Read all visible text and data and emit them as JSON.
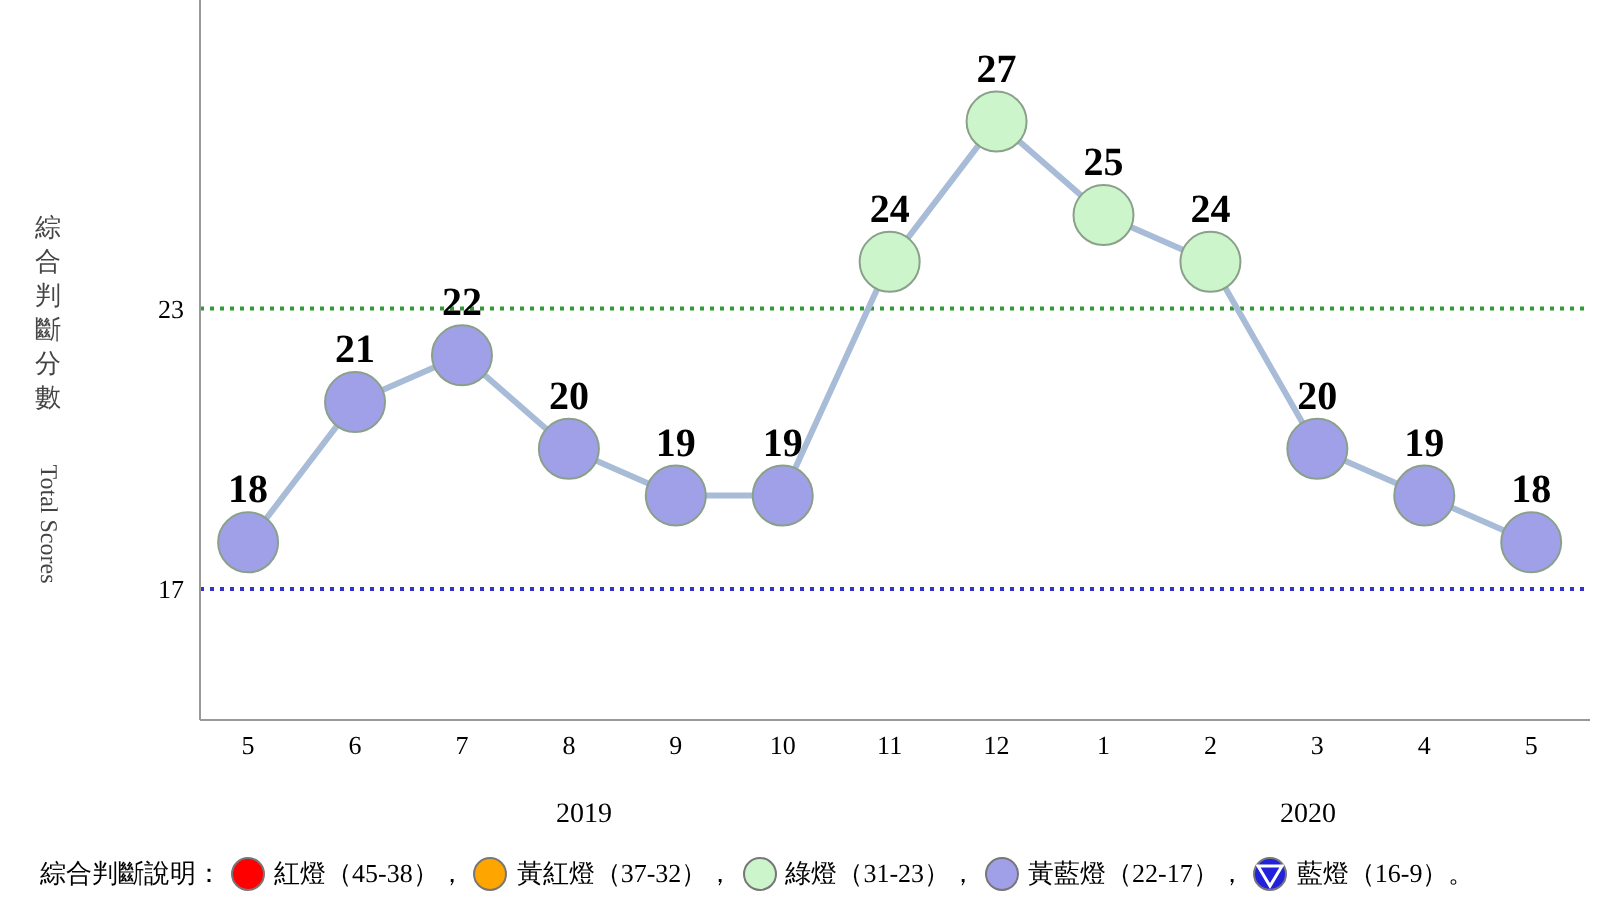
{
  "chart_data": {
    "type": "line",
    "ylabel": "綜合判斷分數 Total Scores",
    "categories": [
      "5",
      "6",
      "7",
      "8",
      "9",
      "10",
      "11",
      "12",
      "1",
      "2",
      "3",
      "4",
      "5"
    ],
    "series": [
      {
        "color": "#a8bcd8",
        "values": [
          18,
          21,
          22,
          20,
          19,
          19,
          24,
          27,
          25,
          24,
          20,
          19,
          18
        ],
        "colors": [
          "#a0a0e8",
          "#a0a0e8",
          "#a0a0e8",
          "#a0a0e8",
          "#a0a0e8",
          "#a0a0e8",
          "#ccf5cc",
          "#ccf5cc",
          "#ccf5cc",
          "#ccf5cc",
          "#a0a0e8",
          "#a0a0e8",
          "#a0a0e8"
        ]
      }
    ],
    "ylim": [
      14.2,
      29.6
    ],
    "yticks": [
      17,
      23
    ],
    "grid": false,
    "legend": false,
    "marker": "circle",
    "line_style": "solid",
    "data_labels": true,
    "ref_lines": [
      {
        "axis": "y",
        "value": 23,
        "color": "#339933",
        "line_style": "dotted"
      },
      {
        "axis": "y",
        "value": 17,
        "color": "#3333cc",
        "line_style": "dotted"
      }
    ],
    "annotations": [
      "2019",
      "2020",
      "綜合判斷說明：",
      "紅燈（45-38），",
      "黃紅燈（37-32），",
      "綠燈（31-23），",
      "黃藍燈（22-17），",
      "藍燈（16-9）。"
    ]
  }
}
